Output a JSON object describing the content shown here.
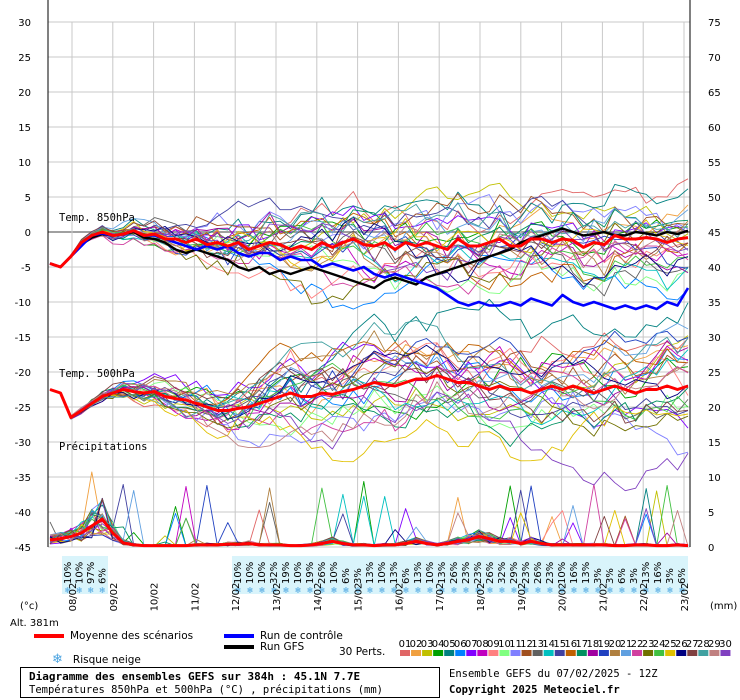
{
  "chart_data": {
    "type": "line",
    "title": "Diagramme des ensembles GEFS sur 384h : 45.1N 7.7E",
    "subtitle": "Températures 850hPa et 500hPa (°C) , précipitations (mm)",
    "left_unit": "(°c)",
    "right_unit": "(mm)",
    "altitude": "Alt. 381m",
    "left_axis": {
      "ticks": [
        30,
        25,
        20,
        15,
        10,
        5,
        0,
        -5,
        -10,
        -15,
        -20,
        -25,
        -30,
        -35,
        -40,
        -45
      ],
      "ylim": [
        -45,
        30
      ]
    },
    "right_axis": {
      "ticks": [
        75,
        70,
        65,
        60,
        55,
        50,
        45,
        40,
        35,
        30,
        25,
        20,
        15,
        10,
        5,
        0
      ],
      "ylim": [
        0,
        75
      ]
    },
    "x_labels": [
      "08/02",
      "09/02",
      "10/02",
      "11/02",
      "12/02",
      "13/02",
      "14/02",
      "15/02",
      "16/02",
      "17/02",
      "18/02",
      "19/02",
      "20/02",
      "21/02",
      "22/02",
      "23/02"
    ],
    "section_labels": {
      "t850": "Temp. 850hPa",
      "t500": "Temp. 500hPa",
      "precip": "Précipitations"
    },
    "snow_risk_pct_a": [
      "10%",
      "10%",
      "97%",
      "6%"
    ],
    "snow_risk_pct_b": [
      "10%",
      "10%",
      "10%",
      "32%",
      "19%",
      "10%",
      "19%",
      "26%",
      "10%",
      "6%",
      "3%",
      "13%",
      "10%",
      "13%",
      "6%",
      "13%",
      "10%",
      "13%",
      "26%",
      "23%",
      "23%",
      "26%",
      "32%",
      "29%",
      "23%",
      "26%",
      "23%",
      "10%",
      "16%",
      "13%",
      "3%",
      "3%",
      "6%",
      "3%",
      "13%",
      "16%",
      "3%",
      "6%"
    ],
    "t850_mean": [
      -4.5,
      -5.0,
      -3.5,
      -1.5,
      -0.5,
      0.0,
      -0.5,
      -0.3,
      0.2,
      -0.5,
      -0.3,
      -1.0,
      -1.0,
      -1.5,
      -1.0,
      -1.8,
      -1.5,
      -2.0,
      -1.5,
      -2.5,
      -2.0,
      -1.5,
      -1.8,
      -2.5,
      -2.0,
      -2.5,
      -1.5,
      -2.2,
      -1.5,
      -1.0,
      -1.8,
      -2.0,
      -1.5,
      -2.5,
      -1.5,
      -2.0,
      -1.5,
      -2.0,
      -2.5,
      -1.0,
      -2.0,
      -2.0,
      -1.5,
      -1.0,
      -2.0,
      -2.0,
      -1.0,
      -1.0,
      -1.5,
      -1.0,
      -1.2,
      -2.2,
      -1.5,
      -1.8,
      -0.5,
      -1.0,
      -1.0,
      -0.8,
      -1.0,
      -1.5,
      -1.0,
      -0.8
    ],
    "t850_control": [
      -4.5,
      -5.0,
      -3.5,
      -2.0,
      -0.5,
      -0.2,
      -0.5,
      -0.3,
      0.2,
      -0.5,
      -0.5,
      -1.0,
      -1.5,
      -2.0,
      -2.5,
      -2.0,
      -2.5,
      -2.0,
      -3.0,
      -3.5,
      -3.0,
      -3.0,
      -4.0,
      -3.5,
      -4.0,
      -4.0,
      -5.0,
      -4.5,
      -5.0,
      -5.5,
      -5.0,
      -6.0,
      -6.5,
      -6.0,
      -6.5,
      -7.0,
      -7.5,
      -8.0,
      -9.0,
      -10.0,
      -10.5,
      -10.0,
      -10.5,
      -10.5,
      -10.0,
      -10.5,
      -9.5,
      -10.0,
      -10.5,
      -9.0,
      -10.0,
      -10.5,
      -10.0,
      -10.5,
      -11.0,
      -10.5,
      -11.0,
      -10.5,
      -11.0,
      -10.0,
      -10.5,
      -8.0
    ],
    "t850_gfs": [
      -4.5,
      -5.0,
      -3.5,
      -1.8,
      -0.8,
      -0.3,
      -0.5,
      -0.3,
      0.0,
      -0.8,
      -1.0,
      -1.5,
      -2.5,
      -3.0,
      -2.5,
      -3.0,
      -3.5,
      -4.0,
      -5.0,
      -5.5,
      -5.0,
      -6.0,
      -5.5,
      -6.0,
      -5.5,
      -5.0,
      -5.5,
      -6.0,
      -6.5,
      -7.0,
      -7.5,
      -8.0,
      -7.0,
      -6.5,
      -7.0,
      -7.5,
      -6.5,
      -6.0,
      -5.5,
      -5.0,
      -4.5,
      -4.0,
      -3.5,
      -3.0,
      -2.5,
      -1.5,
      -1.0,
      -0.5,
      0.0,
      0.5,
      0.0,
      -0.5,
      -0.3,
      0.0,
      -0.5,
      -0.5,
      0.0,
      -0.2,
      -0.5,
      0.0,
      -0.3,
      0.2
    ],
    "t500_mean": [
      -22.5,
      -23.0,
      -26.5,
      -25.5,
      -24.5,
      -23.5,
      -23.0,
      -22.5,
      -22.8,
      -23.0,
      -22.8,
      -23.5,
      -23.8,
      -24.0,
      -24.5,
      -25.0,
      -25.5,
      -25.5,
      -25.2,
      -25.0,
      -24.5,
      -24.0,
      -23.5,
      -23.0,
      -23.5,
      -23.5,
      -23.0,
      -23.2,
      -22.8,
      -22.5,
      -22.0,
      -21.5,
      -21.8,
      -22.0,
      -21.5,
      -21.0,
      -21.0,
      -20.5,
      -21.0,
      -21.5,
      -21.5,
      -22.0,
      -22.5,
      -22.0,
      -22.5,
      -22.5,
      -23.0,
      -22.5,
      -22.0,
      -22.5,
      -22.0,
      -22.5,
      -23.0,
      -22.5,
      -22.0,
      -22.5,
      -23.0,
      -22.5,
      -22.5,
      -22.0,
      -22.5,
      -22.0
    ],
    "precip_mean_mm": [
      1.0,
      1.2,
      1.5,
      2.0,
      3.0,
      4.0,
      2.0,
      0.6,
      0.3,
      0.2,
      0.2,
      0.2,
      0.2,
      0.2,
      0.3,
      0.3,
      0.3,
      0.4,
      0.4,
      0.5,
      0.3,
      0.3,
      0.3,
      0.2,
      0.2,
      0.3,
      0.5,
      0.8,
      0.5,
      0.3,
      0.3,
      0.2,
      0.3,
      0.3,
      0.5,
      0.8,
      0.5,
      0.3,
      0.5,
      0.8,
      1.0,
      1.5,
      1.2,
      0.8,
      0.8,
      0.5,
      0.8,
      0.5,
      0.3,
      0.3,
      0.3,
      0.3,
      0.3,
      0.3,
      0.2,
      0.2,
      0.3,
      0.3,
      0.2,
      0.2,
      0.3,
      0.2
    ],
    "legend": {
      "mean": "Moyenne des scénarios",
      "control": "Run de contrôle",
      "gfs": "Run GFS",
      "snow": "Risque neige",
      "perts": "30 Perts.",
      "pert_labels": [
        "01",
        "02",
        "03",
        "04",
        "05",
        "06",
        "07",
        "08",
        "09",
        "10",
        "11",
        "12",
        "13",
        "14",
        "15",
        "16",
        "17",
        "18",
        "19",
        "20",
        "21",
        "22",
        "23",
        "24",
        "25",
        "26",
        "27",
        "28",
        "29",
        "30"
      ]
    },
    "colors": {
      "mean": "#ff0000",
      "control": "#0000ff",
      "gfs": "#000000",
      "snow": "#4aa3e0",
      "snow_bg": "#d9f4fb",
      "grid": "#c8c8c8",
      "zero_line": "#808080",
      "members": [
        "#e06666",
        "#f0a040",
        "#c0c000",
        "#00a000",
        "#008080",
        "#0080ff",
        "#8000ff",
        "#c000c0",
        "#ff8080",
        "#80ff80",
        "#8080ff",
        "#a05020",
        "#606060",
        "#00c0c0",
        "#4040a0",
        "#c06000",
        "#009060",
        "#a000a0",
        "#2040c0",
        "#b08040",
        "#60a0e0",
        "#d040a0",
        "#707000",
        "#40c040",
        "#e0c000",
        "#000080",
        "#804040",
        "#40a0a0",
        "#c08080",
        "#8040c0"
      ]
    }
  },
  "footer": {
    "ensemble_run": "Ensemble GEFS du 07/02/2025 - 12Z",
    "copyright": "Copyright 2025 Meteociel.fr"
  }
}
